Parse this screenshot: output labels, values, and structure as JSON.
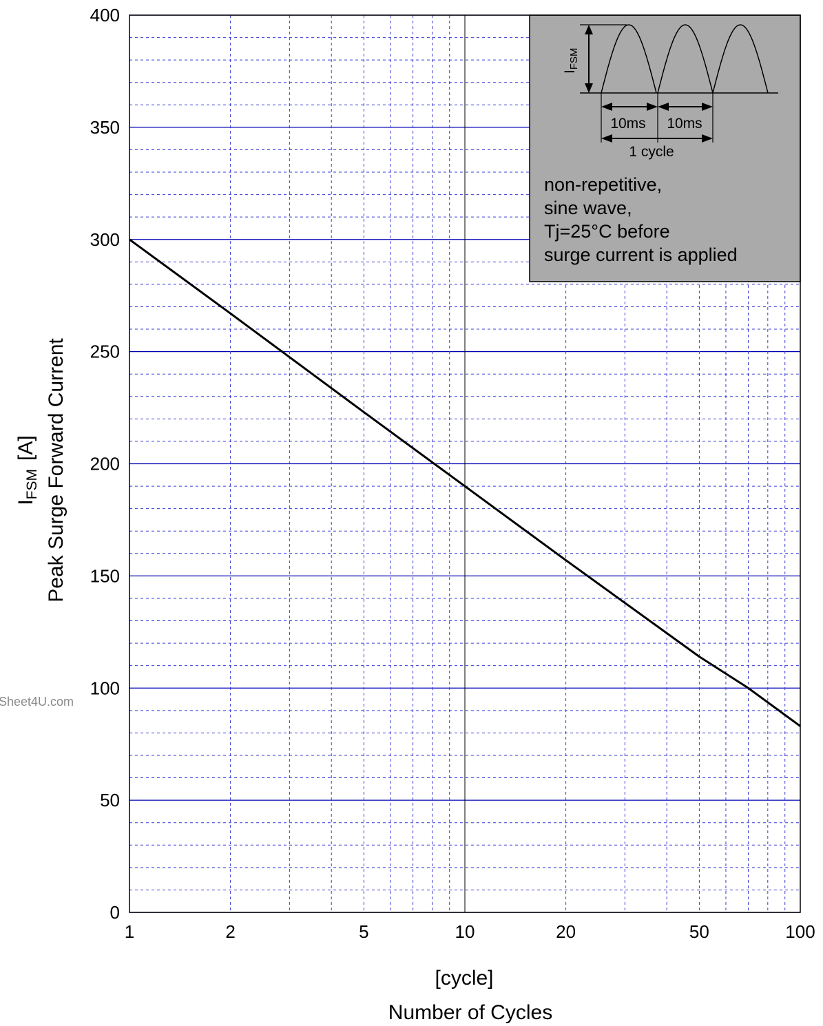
{
  "chart_data": {
    "type": "line",
    "xscale": "log",
    "xlim": [
      1,
      100
    ],
    "ylim": [
      0,
      400
    ],
    "x_ticks": [
      "1",
      "2",
      "5",
      "10",
      "20",
      "50",
      "100"
    ],
    "y_ticks": [
      "0",
      "50",
      "100",
      "150",
      "200",
      "250",
      "300",
      "350",
      "400"
    ],
    "grid": true,
    "xlabel": {
      "unit": "[cycle]",
      "name": "Number of Cycles"
    },
    "ylabel": {
      "symbol": "I",
      "subscript": "FSM",
      "unit": "[A]",
      "name": "Peak Surge Forward Current"
    },
    "series": [
      {
        "x": [
          1,
          2,
          5,
          10,
          20,
          50,
          70,
          100
        ],
        "y": [
          300,
          267,
          223,
          190,
          157,
          114,
          100,
          83
        ]
      }
    ],
    "inset": {
      "symbol": "I",
      "subscript": "FSM",
      "half_period_labels": [
        "10ms",
        "10ms"
      ],
      "cycle_label": "1 cycle",
      "notes": [
        "non-repetitive,",
        "sine wave,",
        "Tj=25°C before",
        "surge current is applied"
      ]
    },
    "watermark": "Sheet4U.com",
    "colors": {
      "major_grid": "#0000b4",
      "minor_grid": "#3a3ad6",
      "line": "#000000",
      "inset_bg": "#aaaaaa"
    }
  }
}
